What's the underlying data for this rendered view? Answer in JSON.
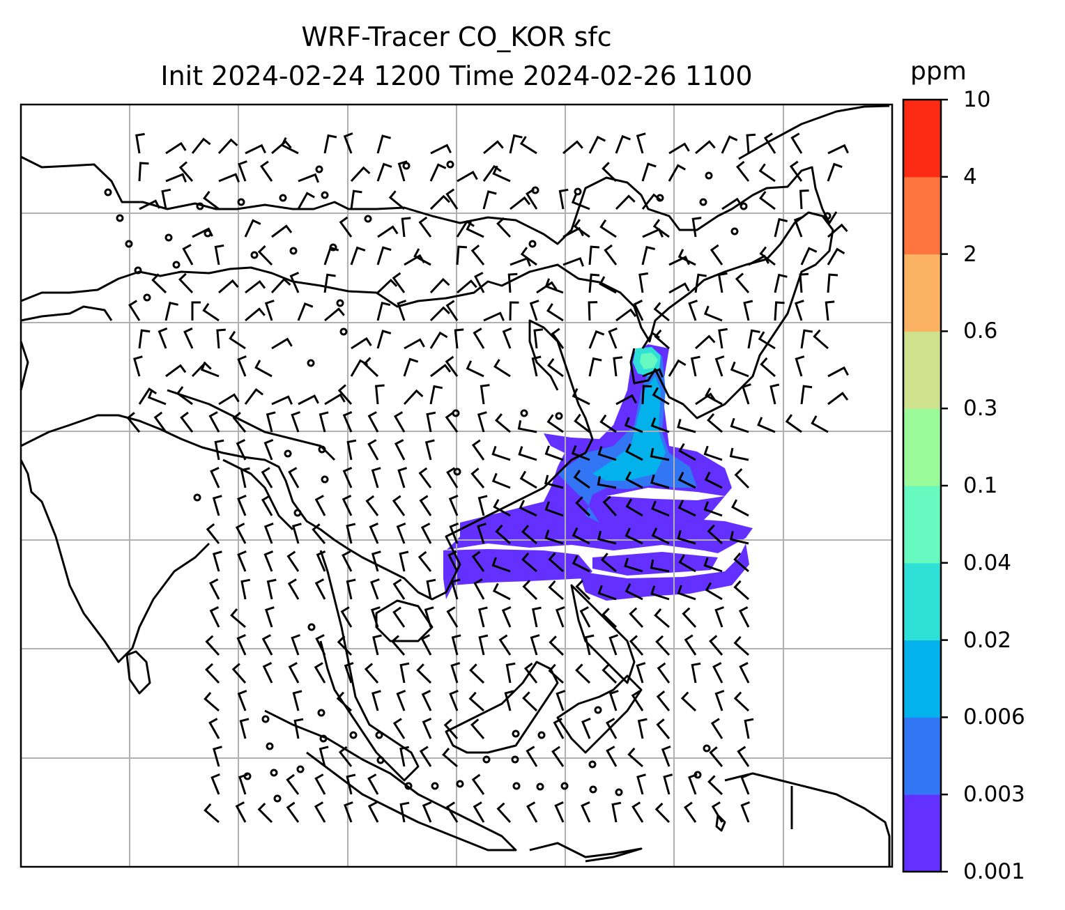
{
  "title_line1": "WRF-Tracer CO_KOR sfc",
  "title_line2": "Init 2024-02-24 1200 Time 2024-02-26 1100",
  "colorbar": {
    "unit": "ppm",
    "levels": [
      "0.001",
      "0.003",
      "0.006",
      "0.02",
      "0.04",
      "0.1",
      "0.3",
      "0.6",
      "2",
      "4",
      "10"
    ],
    "colors": [
      "#6430ff",
      "#3275f5",
      "#04b2eb",
      "#2fe0d6",
      "#66f9c0",
      "#9afa9a",
      "#cfe18c",
      "#fcb263",
      "#ff753d",
      "#fd2a14"
    ]
  },
  "map": {
    "grid": "on",
    "features": [
      "coastlines",
      "wind barbs",
      "tracer concentration fill"
    ],
    "plume_levels_present": [
      "0.001",
      "0.003",
      "0.006",
      "0.02",
      "0.04"
    ]
  }
}
